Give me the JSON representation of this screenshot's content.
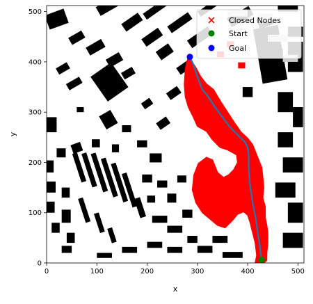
{
  "chart_data": {
    "type": "scatter",
    "title": "",
    "xlabel": "x",
    "ylabel": "y",
    "xlim": [
      0,
      512
    ],
    "ylim": [
      0,
      512
    ],
    "xticks": [
      0,
      100,
      200,
      300,
      400,
      500
    ],
    "yticks": [
      0,
      100,
      200,
      300,
      400,
      500
    ],
    "grid": false,
    "legend_position": "top-right",
    "background": "occupancy map (black obstacles on white free space)",
    "series": [
      {
        "name": "Closed Nodes",
        "marker": "x",
        "color": "#ff0000"
      },
      {
        "name": "Start",
        "marker": "o",
        "color": "#008000",
        "points": [
          [
            428,
            6
          ]
        ]
      },
      {
        "name": "Goal",
        "marker": "o",
        "color": "#0000ff",
        "points": [
          [
            285,
            410
          ]
        ]
      }
    ],
    "path": {
      "color": "#1f77b4",
      "points": [
        [
          285,
          410
        ],
        [
          292,
          395
        ],
        [
          300,
          370
        ],
        [
          310,
          345
        ],
        [
          322,
          330
        ],
        [
          335,
          310
        ],
        [
          350,
          290
        ],
        [
          365,
          270
        ],
        [
          380,
          255
        ],
        [
          395,
          240
        ],
        [
          400,
          230
        ],
        [
          402,
          215
        ],
        [
          402,
          190
        ],
        [
          404,
          160
        ],
        [
          410,
          120
        ],
        [
          416,
          90
        ],
        [
          420,
          60
        ],
        [
          424,
          35
        ],
        [
          427,
          10
        ]
      ]
    },
    "closed_nodes_regions": [
      [
        [
          282,
          410
        ],
        [
          286,
          405
        ],
        [
          296,
          390
        ],
        [
          307,
          370
        ],
        [
          318,
          356
        ],
        [
          332,
          345
        ],
        [
          347,
          320
        ],
        [
          360,
          300
        ],
        [
          373,
          280
        ],
        [
          387,
          260
        ],
        [
          400,
          248
        ],
        [
          410,
          235
        ],
        [
          420,
          210
        ],
        [
          428,
          190
        ],
        [
          430,
          172
        ],
        [
          432,
          150
        ],
        [
          430,
          130
        ],
        [
          435,
          112
        ],
        [
          435,
          90
        ],
        [
          438,
          75
        ],
        [
          440,
          60
        ],
        [
          440,
          40
        ],
        [
          438,
          20
        ],
        [
          438,
          5
        ],
        [
          432,
          0
        ],
        [
          415,
          0
        ],
        [
          418,
          15
        ],
        [
          415,
          40
        ],
        [
          410,
          60
        ],
        [
          405,
          80
        ],
        [
          400,
          95
        ],
        [
          392,
          102
        ],
        [
          380,
          97
        ],
        [
          370,
          85
        ],
        [
          355,
          70
        ],
        [
          340,
          75
        ],
        [
          328,
          85
        ],
        [
          310,
          100
        ],
        [
          297,
          120
        ],
        [
          290,
          145
        ],
        [
          293,
          175
        ],
        [
          302,
          198
        ],
        [
          318,
          210
        ],
        [
          330,
          205
        ],
        [
          340,
          180
        ],
        [
          352,
          170
        ],
        [
          362,
          175
        ],
        [
          372,
          185
        ],
        [
          380,
          200
        ],
        [
          378,
          215
        ],
        [
          360,
          225
        ],
        [
          345,
          230
        ],
        [
          330,
          245
        ],
        [
          318,
          262
        ],
        [
          300,
          272
        ],
        [
          292,
          290
        ],
        [
          282,
          310
        ],
        [
          276,
          330
        ],
        [
          274,
          355
        ],
        [
          276,
          385
        ],
        [
          279,
          400
        ]
      ],
      [
        [
          340,
          420
        ],
        [
          352,
          420
        ],
        [
          352,
          410
        ],
        [
          340,
          410
        ]
      ],
      [
        [
          360,
          440
        ],
        [
          372,
          440
        ],
        [
          372,
          430
        ],
        [
          360,
          430
        ]
      ],
      [
        [
          382,
          398
        ],
        [
          394,
          398
        ],
        [
          394,
          388
        ],
        [
          382,
          388
        ]
      ]
    ]
  },
  "legend": {
    "closed_nodes": "Closed Nodes",
    "start": "Start",
    "goal": "Goal"
  }
}
